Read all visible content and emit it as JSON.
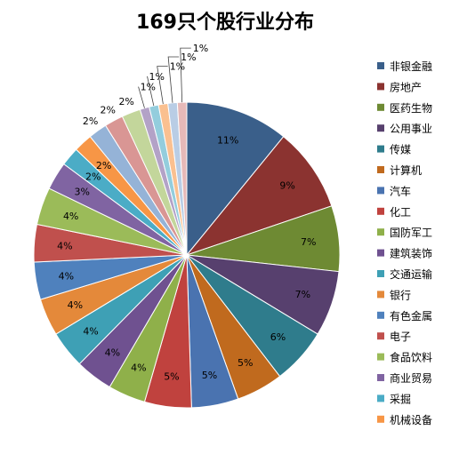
{
  "chart_data": {
    "type": "pie",
    "title": "169只个股行业分布",
    "slices": [
      {
        "label": "非银金融",
        "value": 11,
        "display": "11%",
        "color": "#3A5F8A"
      },
      {
        "label": "房地产",
        "value": 9,
        "display": "9%",
        "color": "#8B3330"
      },
      {
        "label": "医药生物",
        "value": 7,
        "display": "7%",
        "color": "#6E8A33"
      },
      {
        "label": "公用事业",
        "value": 7,
        "display": "7%",
        "color": "#57406E"
      },
      {
        "label": "传媒",
        "value": 6,
        "display": "6%",
        "color": "#2F7C8C"
      },
      {
        "label": "计算机",
        "value": 5,
        "display": "5%",
        "color": "#C06A1E"
      },
      {
        "label": "汽车",
        "value": 5,
        "display": "5%",
        "color": "#4A73B0"
      },
      {
        "label": "化工",
        "value": 5,
        "display": "5%",
        "color": "#C0423E"
      },
      {
        "label": "国防军工",
        "value": 4,
        "display": "4%",
        "color": "#8FB04A"
      },
      {
        "label": "建筑装饰",
        "value": 4,
        "display": "4%",
        "color": "#6F5190"
      },
      {
        "label": "交通运输",
        "value": 4,
        "display": "4%",
        "color": "#3EA0B5"
      },
      {
        "label": "银行",
        "value": 4,
        "display": "4%",
        "color": "#E4893A"
      },
      {
        "label": "有色金属",
        "value": 4,
        "display": "4%",
        "color": "#4F81BD"
      },
      {
        "label": "电子",
        "value": 4,
        "display": "4%",
        "color": "#C0504D"
      },
      {
        "label": "食品饮料",
        "value": 4,
        "display": "4%",
        "color": "#9BBB59"
      },
      {
        "label": "商业贸易",
        "value": 3,
        "display": "3%",
        "color": "#8064A2"
      },
      {
        "label": "采掘",
        "value": 2,
        "display": "2%",
        "color": "#4BACC6"
      },
      {
        "label": "机械设备",
        "value": 2,
        "display": "2%",
        "color": "#F79646"
      },
      {
        "label": "",
        "value": 2,
        "display": "2%",
        "color": "#95B3D7"
      },
      {
        "label": "",
        "value": 2,
        "display": "2%",
        "color": "#D99694"
      },
      {
        "label": "",
        "value": 2,
        "display": "2%",
        "color": "#C3D69B"
      },
      {
        "label": "",
        "value": 1,
        "display": "1%",
        "color": "#B3A2C7"
      },
      {
        "label": "",
        "value": 1,
        "display": "1%",
        "color": "#93CDDD"
      },
      {
        "label": "",
        "value": 1,
        "display": "1%",
        "color": "#FAC090"
      },
      {
        "label": "",
        "value": 1,
        "display": "1%",
        "color": "#B9CDE5"
      },
      {
        "label": "",
        "value": 1,
        "display": "1%",
        "color": "#E6B9B8"
      }
    ],
    "legend": {
      "placement": "right",
      "entries": [
        "非银金融",
        "房地产",
        "医药生物",
        "公用事业",
        "传媒",
        "计算机",
        "汽车",
        "化工",
        "国防军工",
        "建筑装饰",
        "交通运输",
        "银行",
        "有色金属",
        "电子",
        "食品饮料",
        "商业贸易",
        "采掘",
        "机械设备"
      ]
    }
  }
}
